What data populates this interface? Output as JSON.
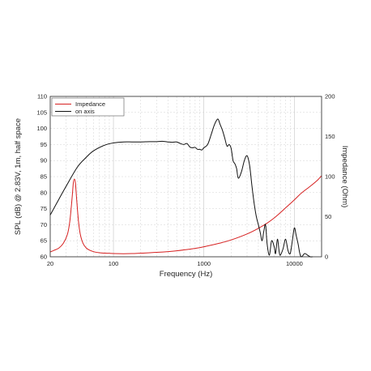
{
  "chart_data": {
    "type": "line",
    "xlabel": "Frequency (Hz)",
    "ylabel": "SPL (dB) @ 2.83V, 1m, half space",
    "y2label": "Impedance (Ohm)",
    "xscale": "log",
    "xlim": [
      20,
      20000
    ],
    "ylim": [
      60,
      110
    ],
    "y2lim": [
      0,
      200
    ],
    "grid": true,
    "legend_position": "top-left",
    "x_ticks": [
      {
        "value": 20,
        "label": "20"
      },
      {
        "value": 100,
        "label": "100"
      },
      {
        "value": 1000,
        "label": "1000"
      },
      {
        "value": 10000,
        "label": "10000"
      }
    ],
    "y_ticks": [
      60,
      65,
      70,
      75,
      80,
      85,
      90,
      95,
      100,
      105,
      110
    ],
    "y2_ticks": [
      0,
      50,
      100,
      150,
      200
    ],
    "series": [
      {
        "name": "Impedance",
        "axis": "right",
        "color": "#d62020",
        "x": [
          20,
          22,
          25,
          28,
          31,
          33,
          35,
          36,
          37,
          38,
          39,
          41,
          43,
          46,
          50,
          55,
          62,
          70,
          80,
          100,
          130,
          160,
          200,
          300,
          500,
          800,
          1000,
          1500,
          2000,
          3000,
          4000,
          5000,
          6000,
          7000,
          8000,
          10000,
          12000,
          15000,
          18000,
          20000
        ],
        "y": [
          6,
          8,
          11,
          17,
          28,
          45,
          75,
          92,
          97,
          92,
          75,
          45,
          28,
          17,
          11,
          8,
          6,
          5,
          4.5,
          4,
          3.8,
          4,
          4.5,
          5.5,
          7.5,
          10.5,
          12.5,
          17,
          21,
          28.5,
          35.5,
          42,
          48.5,
          55,
          61,
          71,
          79.5,
          88,
          95.5,
          101
        ]
      },
      {
        "name": "on axis",
        "axis": "left",
        "color": "#111111",
        "x": [
          20,
          25,
          30,
          40,
          50,
          60,
          80,
          100,
          130,
          160,
          200,
          250,
          300,
          350,
          400,
          450,
          500,
          550,
          600,
          650,
          700,
          750,
          800,
          850,
          900,
          950,
          1000,
          1100,
          1200,
          1300,
          1400,
          1450,
          1500,
          1600,
          1700,
          1800,
          1900,
          2000,
          2100,
          2200,
          2300,
          2400,
          2600,
          2800,
          3000,
          3200,
          3400,
          3600,
          3800,
          4000,
          4200,
          4400,
          4600,
          4800,
          5000,
          5300,
          5600,
          6000,
          6200,
          6500,
          6800,
          7000,
          7500,
          8000,
          8500,
          9000,
          9500,
          10000,
          10500,
          11000,
          11500,
          12000,
          13000,
          14000,
          15000,
          16000
        ],
        "y": [
          73,
          78,
          82,
          88,
          91,
          93,
          94.8,
          95.5,
          95.8,
          95.8,
          95.8,
          95.9,
          95.9,
          96,
          95.8,
          95.7,
          95.8,
          95.3,
          95,
          95.3,
          94.2,
          94,
          94.1,
          93.5,
          93.5,
          93.3,
          94,
          95,
          98,
          101,
          102.8,
          102.7,
          101.5,
          99.5,
          97,
          94.5,
          95,
          93.8,
          90,
          89,
          87.5,
          84.5,
          86.5,
          90,
          91.5,
          88.5,
          82,
          76.5,
          72.5,
          70,
          67.5,
          65,
          68,
          70,
          64,
          60.5,
          65,
          63,
          61,
          65.5,
          61.5,
          60.5,
          62.5,
          65.5,
          62,
          61,
          65,
          69,
          66.5,
          64,
          61,
          60,
          61,
          60.5,
          60,
          60
        ]
      }
    ]
  }
}
